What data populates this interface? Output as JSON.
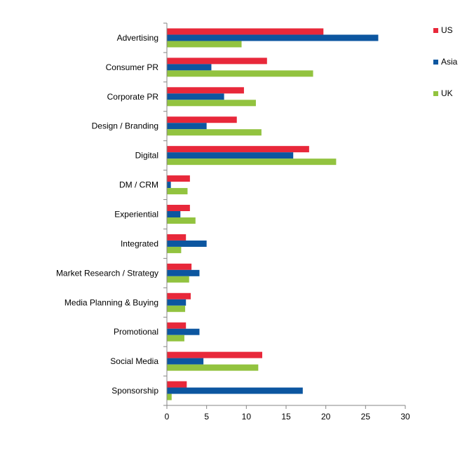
{
  "chart_data": {
    "type": "bar",
    "orientation": "horizontal",
    "title": "",
    "xlabel": "",
    "ylabel": "",
    "categories": [
      "Advertising",
      "Consumer PR",
      "Corporate PR",
      "Design / Branding",
      "Digital",
      "DM / CRM",
      "Experiential",
      "Integrated",
      "Market Research / Strategy",
      "Media Planning & Buying",
      "Promotional",
      "Social Media",
      "Sponsorship"
    ],
    "series": [
      {
        "name": "US",
        "color": "#e8283a",
        "values": [
          19.7,
          12.6,
          9.7,
          8.8,
          17.9,
          2.9,
          2.9,
          2.4,
          3.1,
          3.0,
          2.4,
          12.0,
          2.5
        ]
      },
      {
        "name": "Asia",
        "color": "#0c56a0",
        "values": [
          26.6,
          5.6,
          7.2,
          5.0,
          15.9,
          0.5,
          1.7,
          5.0,
          4.1,
          2.4,
          4.1,
          4.6,
          17.1
        ]
      },
      {
        "name": "UK",
        "color": "#92c33f",
        "values": [
          9.4,
          18.4,
          11.2,
          11.9,
          21.3,
          2.6,
          3.6,
          1.8,
          2.8,
          2.3,
          2.2,
          11.5,
          0.6
        ]
      }
    ],
    "xlim": [
      0,
      30
    ],
    "xticks": [
      0,
      5,
      10,
      15,
      20,
      25,
      30
    ],
    "grid": false,
    "legend_position": "top-right"
  }
}
